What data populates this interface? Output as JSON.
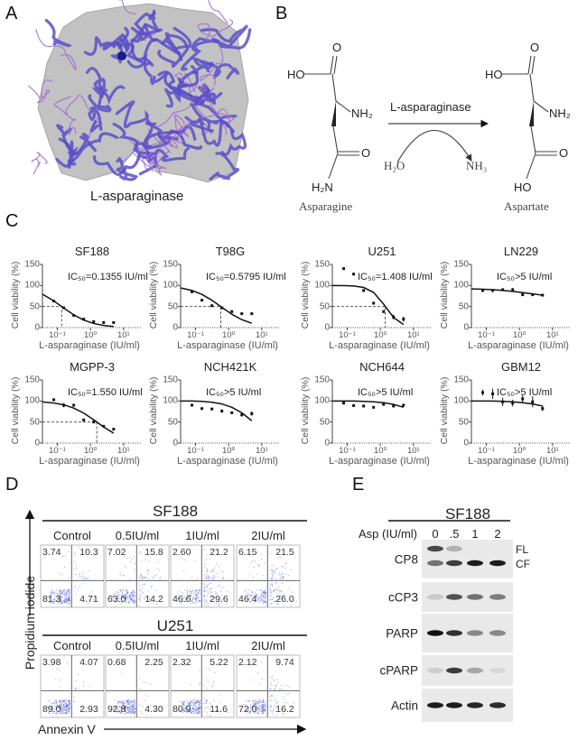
{
  "panels": {
    "A": {
      "letter": "A",
      "caption": "L-asparaginase",
      "colors": {
        "ribbon": "#5b4fc9",
        "surface": "#9a9a9a"
      }
    },
    "B": {
      "letter": "B",
      "substrate": {
        "name": "Asparagine",
        "groups": {
          "ho": "HO",
          "o_top": "O",
          "nh2": "NH₂",
          "o_side": "O",
          "h2n": "H₂N"
        }
      },
      "product": {
        "name": "Aspartate",
        "groups": {
          "ho": "HO",
          "o_top": "O",
          "nh2": "NH₂",
          "o_side": "O",
          "ho2": "HO"
        }
      },
      "enzyme": "L-asparaginase",
      "reactant": "H₂O",
      "byproduct": "NH₃"
    },
    "C": {
      "letter": "C"
    },
    "D": {
      "letter": "D",
      "y_axis_label": "Propidium iodide",
      "x_axis_label": "Annexin V",
      "quadrant_order": [
        "upper-left",
        "upper-right",
        "lower-left",
        "lower-right"
      ],
      "cell_lines": [
        {
          "name": "SF188",
          "conditions": [
            {
              "label": "Control",
              "quadrants": [
                "3.74",
                "10.3",
                "81.3",
                "4.71"
              ]
            },
            {
              "label": "0.5IU/ml",
              "quadrants": [
                "7.02",
                "15.8",
                "63.0",
                "14.2"
              ]
            },
            {
              "label": "1IU/ml",
              "quadrants": [
                "2.60",
                "21.2",
                "46.6",
                "29.6"
              ]
            },
            {
              "label": "2IU/ml",
              "quadrants": [
                "6.15",
                "21.5",
                "46.4",
                "26.0"
              ]
            }
          ]
        },
        {
          "name": "U251",
          "conditions": [
            {
              "label": "Control",
              "quadrants": [
                "3.98",
                "4.07",
                "89.0",
                "2.93"
              ]
            },
            {
              "label": "0.5IU/ml",
              "quadrants": [
                "0.68",
                "2.25",
                "92.8",
                "4.30"
              ]
            },
            {
              "label": "1IU/ml",
              "quadrants": [
                "2.32",
                "5.22",
                "80.9",
                "11.6"
              ]
            },
            {
              "label": "2IU/ml",
              "quadrants": [
                "2.12",
                "9.74",
                "72.0",
                "16.2"
              ]
            }
          ]
        }
      ],
      "dot_color": "#3b4fd8"
    },
    "E": {
      "letter": "E",
      "cell_line": "SF188",
      "dose_label": "Asp (IU/ml)",
      "lanes": [
        "0",
        ".5",
        "1",
        "2"
      ],
      "band_labels": {
        "fl": "FL",
        "cf": "CF"
      },
      "blots": [
        {
          "name": "CP8",
          "bands": [
            [
              0.75,
              0.25
            ],
            [
              0.15,
              0.3
            ],
            [
              0,
              0
            ]
          ],
          "fl": [
            0.75,
            0.25,
            0,
            0
          ],
          "cf": [
            0.55,
            0.8,
            0.95,
            0.95
          ]
        },
        {
          "name": "cCP3",
          "bands": [
            0.15,
            0.7,
            0.55,
            0.5
          ]
        },
        {
          "name": "PARP",
          "bands": [
            1.0,
            0.85,
            0.45,
            0.45
          ]
        },
        {
          "name": "cPARP",
          "bands": [
            0.12,
            0.8,
            0.3,
            0.08
          ]
        },
        {
          "name": "Actin",
          "bands": [
            0.95,
            0.95,
            0.9,
            0.88
          ]
        }
      ]
    }
  },
  "chart_data": [
    {
      "type": "scatter",
      "title": "SF188",
      "annotation": "IC₅₀=0.1355 IU/ml",
      "ic50": 0.1355,
      "xlabel": "L-asparaginase (IU/ml)",
      "ylabel": "Cell viability (%)",
      "xscale": "log",
      "ylim": [
        0,
        150
      ],
      "yticks": [
        "0",
        "50",
        "100",
        "150"
      ],
      "xticks": [
        {
          "v": 0.1,
          "label": "10⁻¹"
        },
        {
          "v": 1,
          "label": "10⁰"
        },
        {
          "v": 10,
          "label": "10¹"
        }
      ],
      "x": [
        0.078,
        0.156,
        0.3125,
        0.625,
        1.25,
        2.5,
        5
      ],
      "y": [
        63,
        47,
        29,
        20,
        14,
        12,
        12
      ],
      "err": [
        0,
        0,
        0,
        0,
        0,
        0,
        0
      ],
      "fit_x": [
        0.035,
        0.078,
        0.156,
        0.3125,
        0.625,
        1.25,
        2.5,
        5
      ],
      "fit_y": [
        79.5,
        63.5,
        46.5,
        30.2,
        17.8,
        9.8,
        5.1,
        2.6
      ]
    },
    {
      "type": "scatter",
      "title": "T98G",
      "annotation": "IC₅₀=0.5795 IU/ml",
      "ic50": 0.5795,
      "xlabel": "L-asparaginase (IU/ml)",
      "ylabel": "Cell viability (%)",
      "xscale": "log",
      "ylim": [
        0,
        150
      ],
      "yticks": [
        "0",
        "50",
        "100",
        "150"
      ],
      "xticks": [
        {
          "v": 0.1,
          "label": "10⁻¹"
        },
        {
          "v": 1,
          "label": "10⁰"
        },
        {
          "v": 10,
          "label": "10¹"
        }
      ],
      "x": [
        0.078,
        0.156,
        0.3125,
        0.625,
        1.25,
        2.5,
        5
      ],
      "y": [
        85,
        65,
        52,
        47,
        38,
        33,
        33
      ],
      "err": [
        2,
        0,
        0,
        0,
        0,
        0,
        0
      ],
      "fit_x": [
        0.035,
        0.078,
        0.156,
        0.3125,
        0.625,
        1.25,
        2.5,
        5
      ],
      "fit_y": [
        94.3,
        88.1,
        78.8,
        65,
        48,
        31.7,
        18.8,
        10.4
      ]
    },
    {
      "type": "scatter",
      "title": "U251",
      "annotation": "IC₅₀=1.408 IU/ml",
      "ic50": 1.408,
      "xlabel": "L-asparaginase (IU/ml)",
      "ylabel": "Cell viability (%)",
      "xscale": "log",
      "ylim": [
        0,
        150
      ],
      "yticks": [
        "0",
        "50",
        "100",
        "150"
      ],
      "xticks": [
        {
          "v": 0.1,
          "label": "10⁻¹"
        },
        {
          "v": 1,
          "label": "10⁰"
        },
        {
          "v": 10,
          "label": "10¹"
        }
      ],
      "x": [
        0.078,
        0.156,
        0.3125,
        0.625,
        1.25,
        2.5,
        5
      ],
      "y": [
        140,
        127,
        88,
        58,
        38,
        25,
        20
      ],
      "err": [
        0,
        0,
        0,
        0,
        3,
        6,
        6
      ],
      "fit_x": [
        0.035,
        0.078,
        0.156,
        0.3125,
        0.625,
        1.25,
        2.5,
        5
      ],
      "fit_y": [
        99.9,
        99.7,
        98.8,
        95.3,
        83.5,
        55.9,
        24.1,
        7.3
      ]
    },
    {
      "type": "scatter",
      "title": "LN229",
      "annotation": "IC₅₀>5 IU/ml",
      "ic50": null,
      "xlabel": "L-asparaginase (IU/ml)",
      "ylabel": "Cell viability (%)",
      "xscale": "log",
      "ylim": [
        0,
        150
      ],
      "yticks": [
        "0",
        "50",
        "100",
        "150"
      ],
      "xticks": [
        {
          "v": 0.1,
          "label": "10⁻¹"
        },
        {
          "v": 1,
          "label": "10⁰"
        },
        {
          "v": 10,
          "label": "10¹"
        }
      ],
      "x": [
        0.078,
        0.156,
        0.3125,
        0.625,
        1.25,
        2.5,
        5
      ],
      "y": [
        88,
        88,
        90,
        90,
        78,
        78,
        77
      ],
      "err": [
        2,
        0,
        3,
        4,
        3,
        0,
        0
      ],
      "fit_x": [
        0.035,
        0.078,
        0.156,
        0.3125,
        0.625,
        1.25,
        2.5,
        5
      ],
      "fit_y": [
        92,
        91,
        90,
        88,
        86,
        83,
        80,
        77
      ]
    },
    {
      "type": "scatter",
      "title": "MGPP-3",
      "annotation": "IC₅₀=1.550 IU/ml",
      "ic50": 1.55,
      "xlabel": "L-asparaginase (IU/ml)",
      "ylabel": "Cell viability (%)",
      "xscale": "log",
      "ylim": [
        0,
        150
      ],
      "yticks": [
        "0",
        "50",
        "100",
        "150"
      ],
      "xticks": [
        {
          "v": 0.1,
          "label": "10⁻¹"
        },
        {
          "v": 1,
          "label": "10⁰"
        },
        {
          "v": 10,
          "label": "10¹"
        }
      ],
      "x": [
        0.078,
        0.156,
        0.3125,
        0.625,
        1.25,
        2.5,
        5
      ],
      "y": [
        103,
        90,
        90,
        55,
        50,
        40,
        33
      ],
      "err": [
        0,
        5,
        0,
        0,
        0,
        0,
        0
      ],
      "fit_x": [
        0.035,
        0.078,
        0.156,
        0.3125,
        0.625,
        1.25,
        2.5,
        5
      ],
      "fit_y": [
        97.8,
        95.2,
        90.9,
        83.2,
        71.3,
        55.4,
        38.3,
        23.7
      ]
    },
    {
      "type": "scatter",
      "title": "NCH421K",
      "annotation": "IC₅₀>5 IU/ml",
      "ic50": null,
      "xlabel": "L-asparaginase (IU/ml)",
      "ylabel": "Cell viability (%)",
      "xscale": "log",
      "ylim": [
        0,
        150
      ],
      "yticks": [
        "0",
        "50",
        "100",
        "150"
      ],
      "xticks": [
        {
          "v": 0.1,
          "label": "10⁻¹"
        },
        {
          "v": 1,
          "label": "10⁰"
        },
        {
          "v": 10,
          "label": "10¹"
        }
      ],
      "x": [
        0.078,
        0.156,
        0.3125,
        0.625,
        1.25,
        2.5,
        5
      ],
      "y": [
        90,
        82,
        81,
        76,
        72,
        67,
        70
      ],
      "err": [
        0,
        0,
        3,
        4,
        0,
        4,
        5
      ],
      "fit_x": [
        0.035,
        0.078,
        0.156,
        0.3125,
        0.625,
        1.25,
        2.5,
        5
      ],
      "fit_y": [
        100,
        100,
        99,
        97,
        93,
        85,
        72,
        53
      ]
    },
    {
      "type": "scatter",
      "title": "NCH644",
      "annotation": "IC₅₀>5 IU/ml",
      "ic50": null,
      "xlabel": "L-asparaginase (IU/ml)",
      "ylabel": "Cell viability (%)",
      "xscale": "log",
      "ylim": [
        0,
        150
      ],
      "yticks": [
        "0",
        "50",
        "100",
        "150"
      ],
      "xticks": [
        {
          "v": 0.1,
          "label": "10⁻¹"
        },
        {
          "v": 1,
          "label": "10⁰"
        },
        {
          "v": 10,
          "label": "10¹"
        }
      ],
      "x": [
        0.078,
        0.156,
        0.3125,
        0.625,
        1.25,
        2.5,
        5
      ],
      "y": [
        95,
        89,
        88,
        85,
        92,
        88,
        90
      ],
      "err": [
        3,
        0,
        3,
        0,
        3,
        3,
        3
      ],
      "fit_x": [
        0.035,
        0.078,
        0.156,
        0.3125,
        0.625,
        1.25,
        2.5,
        5
      ],
      "fit_y": [
        100,
        100,
        100,
        99,
        98,
        96,
        92,
        85
      ]
    },
    {
      "type": "scatter",
      "title": "GBM12",
      "annotation": "IC₅₀>5 IU/ml",
      "ic50": null,
      "xlabel": "L-asparaginase (IU/ml)",
      "ylabel": "Cell viability (%)",
      "xscale": "log",
      "ylim": [
        0,
        150
      ],
      "yticks": [
        "0",
        "50",
        "100",
        "150"
      ],
      "xticks": [
        {
          "v": 0.1,
          "label": "10⁻¹"
        },
        {
          "v": 1,
          "label": "10⁰"
        },
        {
          "v": 10,
          "label": "10¹"
        }
      ],
      "x": [
        0.078,
        0.156,
        0.3125,
        0.625,
        1.25,
        2.5,
        5
      ],
      "y": [
        120,
        117,
        98,
        95,
        105,
        98,
        82
      ],
      "err": [
        7,
        12,
        10,
        8,
        8,
        13,
        6
      ],
      "fit_x": [
        0.035,
        0.078,
        0.156,
        0.3125,
        0.625,
        1.25,
        2.5,
        5
      ],
      "fit_y": [
        100,
        100,
        100,
        99,
        98,
        96,
        93,
        88
      ]
    }
  ]
}
